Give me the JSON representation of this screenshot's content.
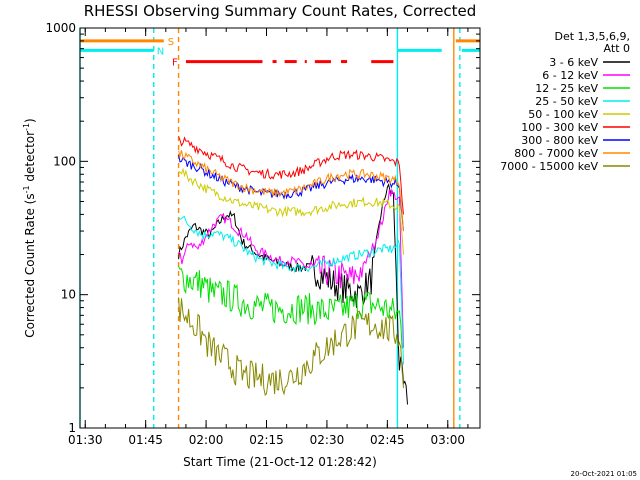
{
  "chart_data": {
    "type": "line",
    "title": "RHESSI Observing Summary Count Rates, Corrected",
    "xlabel": "Start Time (21-Oct-12 01:28:42)",
    "ylabel_parts": [
      "Corrected Count Rate (s",
      "-1",
      " detector",
      "-1",
      ")"
    ],
    "y_scale": "log",
    "ylim": [
      1,
      1000
    ],
    "xlim_minutes": [
      "01:28:42",
      "03:08:00"
    ],
    "x_ticks": [
      {
        "label": "01:30",
        "t": "01:30"
      },
      {
        "label": "01:45",
        "t": "01:45"
      },
      {
        "label": "02:00",
        "t": "02:00"
      },
      {
        "label": "02:15",
        "t": "02:15"
      },
      {
        "label": "02:30",
        "t": "02:30"
      },
      {
        "label": "02:45",
        "t": "02:45"
      },
      {
        "label": "03:00",
        "t": "03:00"
      }
    ],
    "y_ticks": [
      {
        "label": "1",
        "v": 1
      },
      {
        "label": "10",
        "v": 10
      },
      {
        "label": "100",
        "v": 100
      },
      {
        "label": "1000",
        "v": 1000
      }
    ],
    "legend_header": [
      "Det 1,3,5,6,9,",
      "Att 0"
    ],
    "legend_position": "top-right",
    "series": [
      {
        "name": "3 - 6 keV",
        "color": "#000000",
        "points": [
          [
            "01:53:10",
            20
          ],
          [
            "01:55",
            27
          ],
          [
            "01:57",
            33
          ],
          [
            "01:59",
            30
          ],
          [
            "02:01",
            28
          ],
          [
            "02:03",
            34
          ],
          [
            "02:05",
            40
          ],
          [
            "02:07",
            38
          ],
          [
            "02:09",
            25
          ],
          [
            "02:11",
            22
          ],
          [
            "02:13",
            20
          ],
          [
            "02:16",
            18
          ],
          [
            "02:19",
            17
          ],
          [
            "02:22",
            16
          ],
          [
            "02:26",
            16
          ],
          [
            "02:29",
            14
          ],
          [
            "02:32",
            12
          ],
          [
            "02:35",
            11
          ],
          [
            "02:38",
            10
          ],
          [
            "02:41",
            13
          ],
          [
            "02:43",
            35
          ],
          [
            "02:45",
            65
          ],
          [
            "02:46:30",
            55
          ],
          [
            "02:48",
            3
          ],
          [
            "02:49",
            2
          ],
          [
            "02:50",
            1.5
          ]
        ]
      },
      {
        "name": "6 - 12 keV",
        "color": "#ff00ff",
        "points": [
          [
            "01:53:10",
            22
          ],
          [
            "01:54",
            18
          ],
          [
            "01:56",
            25
          ],
          [
            "01:58",
            22
          ],
          [
            "02:00",
            28
          ],
          [
            "02:02",
            34
          ],
          [
            "02:04",
            38
          ],
          [
            "02:06",
            35
          ],
          [
            "02:08",
            30
          ],
          [
            "02:10",
            28
          ],
          [
            "02:12",
            22
          ],
          [
            "02:15",
            20
          ],
          [
            "02:18",
            18
          ],
          [
            "02:21",
            18
          ],
          [
            "02:24",
            17
          ],
          [
            "02:27",
            15
          ],
          [
            "02:30",
            15
          ],
          [
            "02:33",
            14
          ],
          [
            "02:36",
            13
          ],
          [
            "02:39",
            16
          ],
          [
            "02:42",
            25
          ],
          [
            "02:44",
            38
          ],
          [
            "02:45:30",
            60
          ],
          [
            "02:47",
            55
          ],
          [
            "02:48",
            50
          ],
          [
            "02:49",
            4
          ]
        ]
      },
      {
        "name": "12 - 25 keV",
        "color": "#00e000",
        "points": [
          [
            "01:53:10",
            14
          ],
          [
            "01:56",
            13
          ],
          [
            "01:59",
            12
          ],
          [
            "02:02",
            10
          ],
          [
            "02:05",
            10
          ],
          [
            "02:08",
            9
          ],
          [
            "02:11",
            8.5
          ],
          [
            "02:14",
            8
          ],
          [
            "02:17",
            7.8
          ],
          [
            "02:20",
            7.8
          ],
          [
            "02:23",
            8
          ],
          [
            "02:26",
            7.8
          ],
          [
            "02:29",
            7.5
          ],
          [
            "02:32",
            7.5
          ],
          [
            "02:35",
            8
          ],
          [
            "02:38",
            8.5
          ],
          [
            "02:41",
            8.5
          ],
          [
            "02:44",
            8
          ],
          [
            "02:46",
            7.5
          ],
          [
            "02:48",
            7
          ],
          [
            "02:49",
            4
          ]
        ]
      },
      {
        "name": "25 - 50 keV",
        "color": "#00eeee",
        "points": [
          [
            "01:53:10",
            40
          ],
          [
            "01:56",
            33
          ],
          [
            "01:59",
            28
          ],
          [
            "02:02",
            29
          ],
          [
            "02:05",
            27
          ],
          [
            "02:08",
            24
          ],
          [
            "02:11",
            20
          ],
          [
            "02:14",
            18
          ],
          [
            "02:17",
            17
          ],
          [
            "02:20",
            16
          ],
          [
            "02:23",
            16
          ],
          [
            "02:26",
            16
          ],
          [
            "02:29",
            17
          ],
          [
            "02:32",
            18
          ],
          [
            "02:35",
            19
          ],
          [
            "02:38",
            20
          ],
          [
            "02:41",
            21
          ],
          [
            "02:44",
            22
          ],
          [
            "02:46",
            22
          ],
          [
            "02:48",
            24
          ],
          [
            "02:49",
            3
          ]
        ]
      },
      {
        "name": "50 - 100 keV",
        "color": "#cccc00",
        "points": [
          [
            "01:53:10",
            90
          ],
          [
            "01:55",
            78
          ],
          [
            "01:58",
            68
          ],
          [
            "02:01",
            60
          ],
          [
            "02:04",
            55
          ],
          [
            "02:07",
            50
          ],
          [
            "02:10",
            47
          ],
          [
            "02:13",
            45
          ],
          [
            "02:16",
            43
          ],
          [
            "02:19",
            42
          ],
          [
            "02:22",
            42
          ],
          [
            "02:25",
            42
          ],
          [
            "02:28",
            44
          ],
          [
            "02:31",
            46
          ],
          [
            "02:34",
            48
          ],
          [
            "02:37",
            49
          ],
          [
            "02:40",
            50
          ],
          [
            "02:43",
            49
          ],
          [
            "02:46",
            47
          ],
          [
            "02:48",
            45
          ],
          [
            "02:49",
            20
          ]
        ]
      },
      {
        "name": "100 - 300 keV",
        "color": "#ff0000",
        "points": [
          [
            "01:53:10",
            145
          ],
          [
            "01:55",
            138
          ],
          [
            "01:58",
            125
          ],
          [
            "02:01",
            112
          ],
          [
            "02:04",
            102
          ],
          [
            "02:07",
            92
          ],
          [
            "02:10",
            86
          ],
          [
            "02:13",
            82
          ],
          [
            "02:16",
            80
          ],
          [
            "02:19",
            80
          ],
          [
            "02:22",
            82
          ],
          [
            "02:25",
            88
          ],
          [
            "02:28",
            98
          ],
          [
            "02:31",
            108
          ],
          [
            "02:34",
            112
          ],
          [
            "02:37",
            112
          ],
          [
            "02:40",
            110
          ],
          [
            "02:43",
            106
          ],
          [
            "02:46",
            100
          ],
          [
            "02:48",
            97
          ],
          [
            "02:49",
            40
          ]
        ]
      },
      {
        "name": "300 - 800 keV",
        "color": "#0000ff",
        "points": [
          [
            "01:53:10",
            105
          ],
          [
            "01:55",
            98
          ],
          [
            "01:58",
            90
          ],
          [
            "02:01",
            80
          ],
          [
            "02:04",
            72
          ],
          [
            "02:07",
            66
          ],
          [
            "02:10",
            62
          ],
          [
            "02:13",
            58
          ],
          [
            "02:16",
            57
          ],
          [
            "02:19",
            57
          ],
          [
            "02:22",
            58
          ],
          [
            "02:25",
            61
          ],
          [
            "02:28",
            66
          ],
          [
            "02:31",
            70
          ],
          [
            "02:34",
            73
          ],
          [
            "02:37",
            74
          ],
          [
            "02:40",
            74
          ],
          [
            "02:43",
            72
          ],
          [
            "02:46",
            69
          ],
          [
            "02:48",
            66
          ],
          [
            "02:49",
            30
          ]
        ]
      },
      {
        "name": "800 - 7000 keV",
        "color": "#ff8800",
        "points": [
          [
            "01:53:10",
            115
          ],
          [
            "01:55",
            108
          ],
          [
            "01:58",
            95
          ],
          [
            "02:01",
            84
          ],
          [
            "02:04",
            75
          ],
          [
            "02:07",
            68
          ],
          [
            "02:10",
            63
          ],
          [
            "02:13",
            60
          ],
          [
            "02:16",
            58
          ],
          [
            "02:19",
            58
          ],
          [
            "02:22",
            60
          ],
          [
            "02:25",
            64
          ],
          [
            "02:28",
            70
          ],
          [
            "02:31",
            76
          ],
          [
            "02:34",
            80
          ],
          [
            "02:37",
            80
          ],
          [
            "02:40",
            80
          ],
          [
            "02:43",
            77
          ],
          [
            "02:46",
            74
          ],
          [
            "02:48",
            70
          ],
          [
            "02:49",
            30
          ]
        ]
      },
      {
        "name": "7000 - 15000 keV",
        "color": "#888800",
        "points": [
          [
            "01:53:10",
            8
          ],
          [
            "01:55",
            7
          ],
          [
            "01:57",
            6
          ],
          [
            "01:59",
            5
          ],
          [
            "02:01",
            4
          ],
          [
            "02:03",
            3.5
          ],
          [
            "02:05",
            3.2
          ],
          [
            "02:07",
            2.8
          ],
          [
            "02:09",
            2.5
          ],
          [
            "02:12",
            2.4
          ],
          [
            "02:15",
            2.3
          ],
          [
            "02:18",
            2.3
          ],
          [
            "02:21",
            2.4
          ],
          [
            "02:24",
            2.8
          ],
          [
            "02:27",
            3.4
          ],
          [
            "02:30",
            4
          ],
          [
            "02:33",
            4.8
          ],
          [
            "02:36",
            5.5
          ],
          [
            "02:39",
            6
          ],
          [
            "02:42",
            6
          ],
          [
            "02:45",
            5.5
          ],
          [
            "02:48",
            5
          ],
          [
            "02:49",
            2
          ]
        ]
      }
    ],
    "flag_bars": [
      {
        "label": "S",
        "color": "#ff8800",
        "value": 800,
        "segments": [
          [
            "01:28:42",
            "01:49:30"
          ],
          [
            "03:02",
            "03:08"
          ]
        ]
      },
      {
        "label": "N",
        "color": "#00eeee",
        "value": 680,
        "segments": [
          [
            "01:28:42",
            "01:47:00"
          ],
          [
            "02:47:30",
            "02:58:30"
          ],
          [
            "03:03:30",
            "03:08"
          ]
        ]
      },
      {
        "label": "F",
        "color": "#ff0000",
        "value": 560,
        "segments": [
          [
            "01:55:00",
            "02:14:00"
          ],
          [
            "02:16:30",
            "02:17:30"
          ],
          [
            "02:19:30",
            "02:22:30"
          ],
          [
            "02:24:30",
            "02:25:00"
          ],
          [
            "02:27:00",
            "02:31:00"
          ],
          [
            "02:33:30",
            "02:35:00"
          ],
          [
            "02:41:00",
            "02:46:30"
          ]
        ]
      }
    ],
    "vertical_lines": [
      {
        "t": "01:28:42",
        "color": "#00eeee",
        "style": "solid"
      },
      {
        "t": "01:47:00",
        "color": "#00eeee",
        "style": "dashed"
      },
      {
        "t": "01:53:10",
        "color": "#ff8800",
        "style": "dashed"
      },
      {
        "t": "02:47:30",
        "color": "#00eeee",
        "style": "solid"
      },
      {
        "t": "03:01:30",
        "color": "#ff8800",
        "style": "solid"
      },
      {
        "t": "03:03:00",
        "color": "#00eeee",
        "style": "dashed"
      }
    ]
  },
  "footer": {
    "timestamp": "20-Oct-2021 01:05"
  }
}
